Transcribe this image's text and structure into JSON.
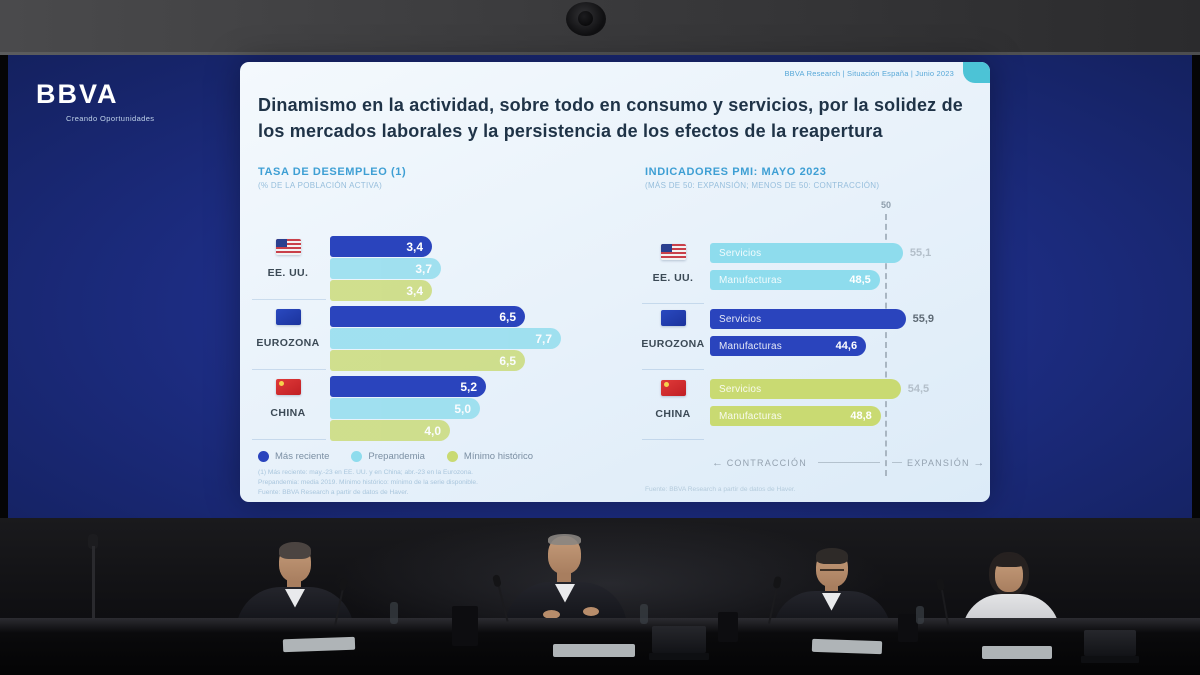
{
  "screen": {
    "brand": {
      "name": "BBVA",
      "tagline": "Creando Oportunidades"
    },
    "slide": {
      "header_meta": "BBVA Research | Situación España | Junio 2023",
      "title": "Dinamismo en la actividad, sobre todo en consumo y servicios, por la solidez de los mercados laborales y la persistencia de los efectos de la reapertura"
    }
  },
  "palette": {
    "screen_blue": "#1d2d84",
    "slide_background": "#e9f2fa",
    "title_navy": "#1f3347",
    "header_blue": "#3e9fd4",
    "bar_blue": "#2a44bd",
    "bar_cyan": "#8edced",
    "bar_green": "#c9da72",
    "corner_tab_teal": "#4cc3d6"
  },
  "chart_data": [
    {
      "id": "tasa_desempleo",
      "type": "bar",
      "orientation": "horizontal",
      "title": "TASA DE DESEMPLEO (1)",
      "subtitle": "(% DE LA POBLACIÓN ACTIVA)",
      "categories": [
        "EE. UU.",
        "EUROZONA",
        "CHINA"
      ],
      "series": [
        {
          "name": "Más reciente",
          "color": "#2a44bd",
          "values": [
            3.4,
            6.5,
            5.2
          ],
          "labels": [
            "3,4",
            "6,5",
            "5,2"
          ]
        },
        {
          "name": "Prepandemia",
          "color": "#8edced",
          "values": [
            3.7,
            7.7,
            5.0
          ],
          "labels": [
            "3,7",
            "7,7",
            "5,0"
          ]
        },
        {
          "name": "Mínimo histórico",
          "color": "#c9da72",
          "values": [
            3.4,
            6.5,
            4.0
          ],
          "labels": [
            "3,4",
            "6,5",
            "4,0"
          ]
        }
      ],
      "xlim": [
        0,
        8
      ],
      "grid": false,
      "legend_position": "bottom",
      "footnotes": [
        "(1) Más reciente: may.-23 en EE. UU. y en China; abr.-23 en la Eurozona.",
        "Prepandemia: media 2019. Mínimo histórico: mínimo de la serie disponible.",
        "Fuente: BBVA Research a partir de datos de Haver."
      ]
    },
    {
      "id": "indicadores_pmi",
      "type": "bar",
      "orientation": "horizontal",
      "title": "INDICADORES PMI: MAYO 2023",
      "subtitle": "(MÁS DE 50: EXPANSIÓN; MENOS DE 50: CONTRACCIÓN)",
      "categories": [
        "EE. UU.",
        "EUROZONA",
        "CHINA"
      ],
      "category_colors": [
        "#8edced",
        "#2a44bd",
        "#c9da72"
      ],
      "series": [
        {
          "name": "Servicios",
          "values": [
            55.1,
            55.9,
            54.5
          ],
          "labels": [
            "55,1",
            "55,9",
            "54,5"
          ]
        },
        {
          "name": "Manufacturas",
          "values": [
            48.5,
            44.6,
            48.8
          ],
          "labels": [
            "48,5",
            "44,6",
            "48,8"
          ]
        }
      ],
      "xlim": [
        0,
        57
      ],
      "reference_line": {
        "value": 50,
        "label": "50"
      },
      "axis_annotations": {
        "left": "CONTRACCIÓN",
        "right": "EXPANSIÓN"
      },
      "source": "Fuente: BBVA Research a partir de datos de Haver."
    }
  ]
}
